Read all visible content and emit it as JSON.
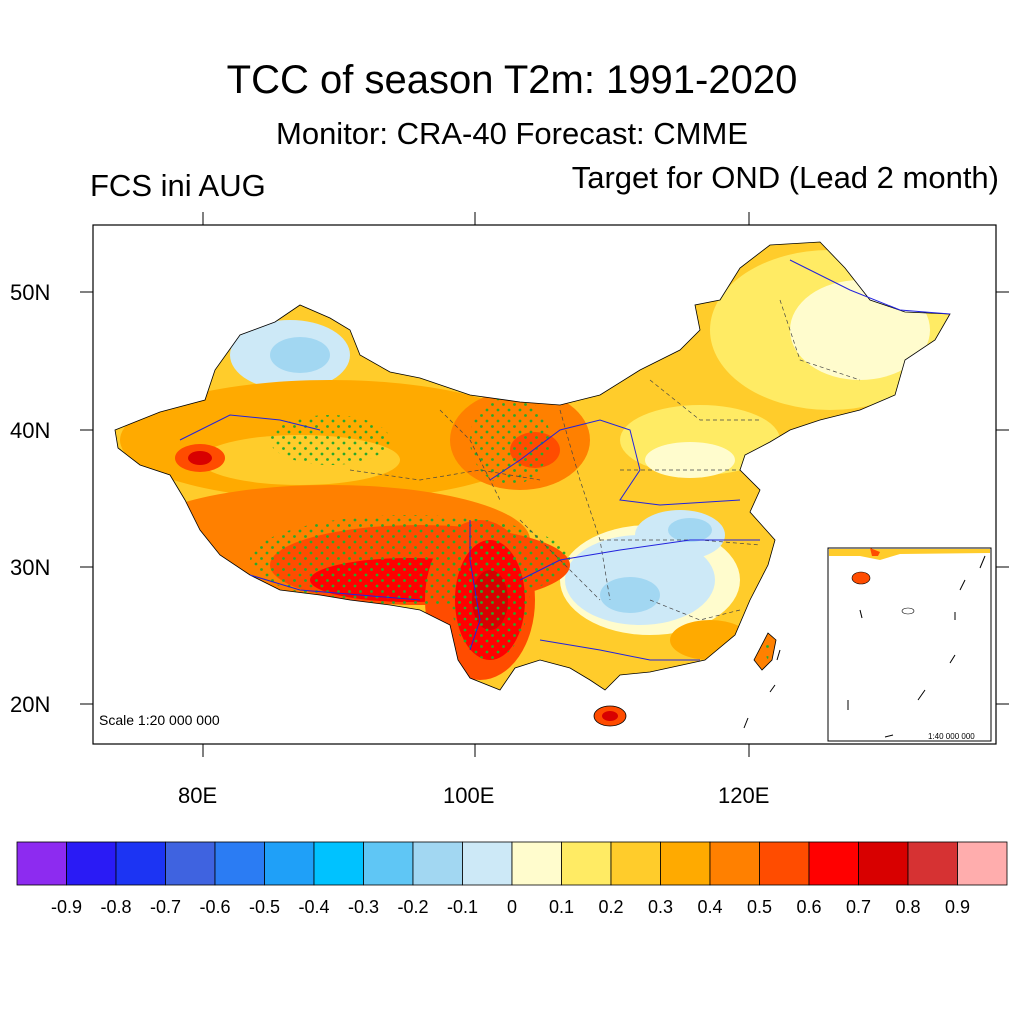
{
  "title": "TCC of season T2m: 1991-2020",
  "subtitle": "Monitor: CRA-40   Forecast: CMME",
  "left_label": "FCS ini AUG",
  "right_label": "Target for OND (Lead 2 month)",
  "scale_label": "Scale 1:20 000 000",
  "inset_scale_label": "1:40 000 000",
  "lat_labels": [
    "50N",
    "40N",
    "30N",
    "20N"
  ],
  "lon_labels": [
    "80E",
    "100E",
    "120E"
  ],
  "colorbar": {
    "colors": [
      "#8d2bf0",
      "#2a1bf5",
      "#1c34f3",
      "#3f63e0",
      "#2b7cf3",
      "#1fa0f8",
      "#00c2ff",
      "#5fc6f5",
      "#a2d7f2",
      "#cde9f7",
      "#fffccd",
      "#ffeb64",
      "#ffcc2b",
      "#ffaa00",
      "#ff8000",
      "#ff4c00",
      "#ff0000",
      "#d80000",
      "#d63233",
      "#ffadad"
    ],
    "labels": [
      "-0.9",
      "-0.8",
      "-0.7",
      "-0.6",
      "-0.5",
      "-0.4",
      "-0.3",
      "-0.2",
      "-0.1",
      "0",
      "0.1",
      "0.2",
      "0.3",
      "0.4",
      "0.5",
      "0.6",
      "0.7",
      "0.8",
      "0.9"
    ]
  }
}
